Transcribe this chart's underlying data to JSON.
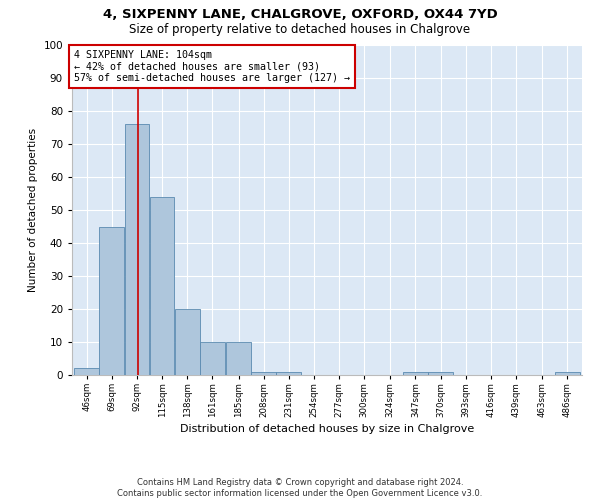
{
  "title1": "4, SIXPENNY LANE, CHALGROVE, OXFORD, OX44 7YD",
  "title2": "Size of property relative to detached houses in Chalgrove",
  "xlabel": "Distribution of detached houses by size in Chalgrove",
  "ylabel": "Number of detached properties",
  "bins_left": [
    46,
    69,
    92,
    115,
    138,
    161,
    185,
    208,
    231,
    254,
    277,
    300,
    324,
    347,
    370,
    393,
    416,
    439,
    463,
    486
  ],
  "bin_width": 23,
  "bar_heights": [
    2,
    45,
    76,
    54,
    20,
    10,
    10,
    1,
    1,
    0,
    0,
    0,
    0,
    1,
    1,
    0,
    0,
    0,
    0,
    1
  ],
  "bar_color": "#aec6dc",
  "bar_edge_color": "#5a8ab0",
  "property_size": 104,
  "vline_color": "#cc0000",
  "annotation_text": "4 SIXPENNY LANE: 104sqm\n← 42% of detached houses are smaller (93)\n57% of semi-detached houses are larger (127) →",
  "annotation_box_facecolor": "#ffffff",
  "annotation_box_edgecolor": "#cc0000",
  "ylim": [
    0,
    100
  ],
  "yticks": [
    0,
    10,
    20,
    30,
    40,
    50,
    60,
    70,
    80,
    90,
    100
  ],
  "tick_labels": [
    "46sqm",
    "69sqm",
    "92sqm",
    "115sqm",
    "138sqm",
    "161sqm",
    "185sqm",
    "208sqm",
    "231sqm",
    "254sqm",
    "277sqm",
    "300sqm",
    "324sqm",
    "347sqm",
    "370sqm",
    "393sqm",
    "416sqm",
    "439sqm",
    "463sqm",
    "486sqm"
  ],
  "footer_line1": "Contains HM Land Registry data © Crown copyright and database right 2024.",
  "footer_line2": "Contains public sector information licensed under the Open Government Licence v3.0.",
  "bg_color": "#dce8f5",
  "fig_bg": "#ffffff"
}
